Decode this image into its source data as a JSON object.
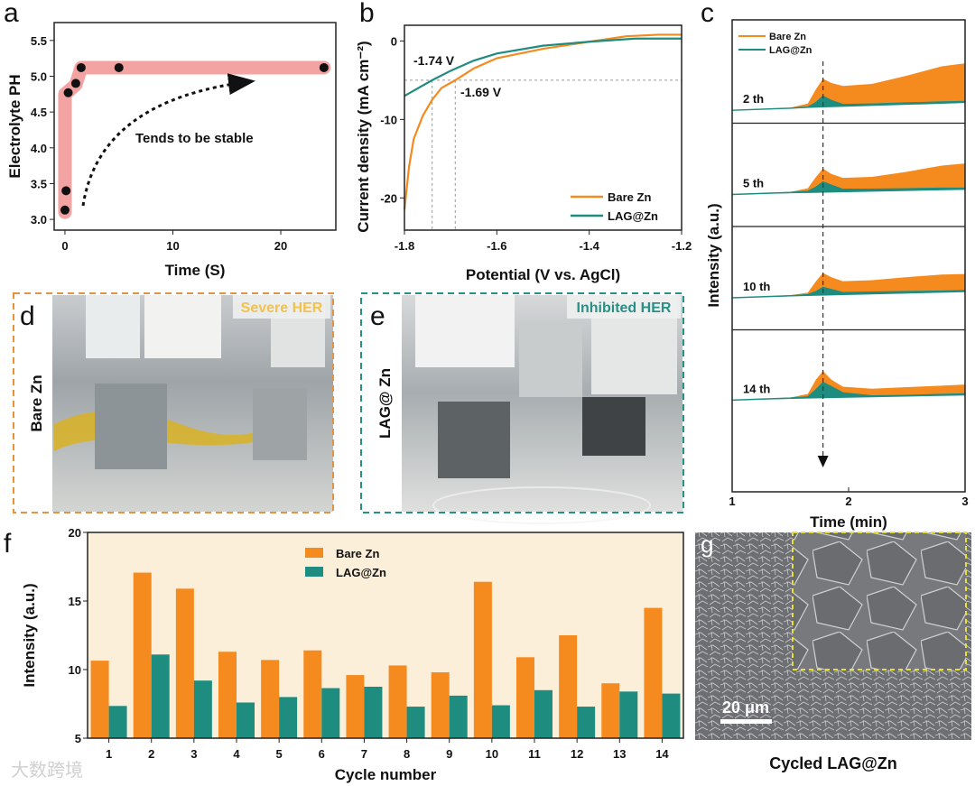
{
  "panels": {
    "a": "a",
    "b": "b",
    "c": "c",
    "d": "d",
    "e": "e",
    "f": "f",
    "g": "g",
    "d_side_label": "Bare Zn",
    "d_tag": "Severe HER",
    "e_side_label": "LAG@ Zn",
    "e_tag": "Inhibited HER",
    "g_scale_bar": "20 μm",
    "g_caption": "Cycled LAG@Zn"
  },
  "watermark": "大数跨境",
  "colors": {
    "bare": "#f58a1f",
    "lag": "#1f8c80",
    "band": "#f4a3a3",
    "f_bg": "#fcefd9",
    "d_border": "#e8923a",
    "e_border": "#2a8f85",
    "d_tag": "#f2c14e",
    "g_inset": "#e8e03a"
  },
  "chart_data": [
    {
      "id": "a",
      "type": "scatter",
      "xlabel": "Time (S)",
      "ylabel": "Electrolyte PH",
      "xlim": [
        -1,
        25.1
      ],
      "ylim": [
        2.85,
        5.75
      ],
      "xticks": [
        0,
        10,
        20
      ],
      "yticks": [
        "3.0",
        "3.5",
        "4.0",
        "4.5",
        "5.0",
        "5.5"
      ],
      "x": [
        0,
        0.1,
        0.3,
        1,
        1.5,
        5,
        24
      ],
      "y": [
        3.13,
        3.4,
        4.77,
        4.9,
        5.12,
        5.12,
        5.12
      ],
      "annotation": "Tends to be stable"
    },
    {
      "id": "b",
      "type": "line",
      "xlabel": "Potential (V vs. AgCl)",
      "ylabel": "Current density (mA cm⁻²)",
      "xlim": [
        -1.8,
        -1.2
      ],
      "ylim": [
        -24.1,
        2
      ],
      "xticks": [
        "-1.8",
        "-1.6",
        "-1.4",
        "-1.2"
      ],
      "yticks": [
        "0",
        "-10",
        "-20"
      ],
      "series": [
        {
          "name": "Bare Zn",
          "x": [
            -1.8,
            -1.79,
            -1.78,
            -1.76,
            -1.74,
            -1.72,
            -1.69,
            -1.65,
            -1.6,
            -1.5,
            -1.4,
            -1.32,
            -1.25,
            -1.2
          ],
          "y": [
            -21.5,
            -16,
            -12.5,
            -9.5,
            -7.5,
            -6,
            -5,
            -3.5,
            -2.2,
            -1,
            -0.1,
            0.6,
            0.8,
            0.8
          ]
        },
        {
          "name": "LAG@Zn",
          "x": [
            -1.8,
            -1.77,
            -1.74,
            -1.7,
            -1.65,
            -1.6,
            -1.5,
            -1.4,
            -1.3,
            -1.2
          ],
          "y": [
            -7,
            -6,
            -5,
            -3.8,
            -2.5,
            -1.6,
            -0.6,
            -0.1,
            0.3,
            0.3
          ]
        }
      ],
      "annotations": [
        "-1.74 V",
        "-1.69 V"
      ],
      "reference": {
        "y": -5,
        "x": [
          -1.74,
          -1.69
        ]
      }
    },
    {
      "id": "c",
      "type": "area",
      "xlabel": "Time (min)",
      "ylabel": "Intensity (a.u.)",
      "xlim": [
        1,
        3
      ],
      "ylim": [
        0,
        10
      ],
      "xticks": [
        "1",
        "2",
        "3"
      ],
      "marker_x": 1.78,
      "legend": [
        "Bare Zn",
        "LAG@Zn"
      ],
      "x": [
        1,
        1.5,
        1.65,
        1.72,
        1.78,
        1.85,
        1.95,
        2.2,
        2.5,
        2.8,
        3
      ],
      "cycles": [
        {
          "label": "2 th",
          "bare": [
            1.25,
            1.5,
            1.9,
            3.3,
            4.3,
            3.9,
            3.6,
            3.8,
            4.6,
            5.5,
            5.8
          ],
          "lag": [
            1.25,
            1.45,
            1.55,
            2.0,
            2.6,
            2.2,
            1.8,
            1.85,
            1.95,
            2.05,
            2.1
          ]
        },
        {
          "label": "5 th",
          "bare": [
            3.1,
            3.35,
            3.7,
            4.8,
            5.6,
            5.1,
            4.7,
            4.8,
            5.3,
            5.9,
            6.1
          ],
          "lag": [
            3.1,
            3.3,
            3.4,
            3.8,
            4.3,
            4.0,
            3.6,
            3.6,
            3.65,
            3.7,
            3.7
          ]
        },
        {
          "label": "10 th",
          "bare": [
            3.1,
            3.35,
            3.6,
            4.7,
            5.5,
            5.1,
            4.7,
            4.8,
            5.1,
            5.35,
            5.4
          ],
          "lag": [
            3.1,
            3.3,
            3.4,
            3.7,
            4.1,
            3.9,
            3.6,
            3.65,
            3.7,
            3.75,
            3.8
          ]
        },
        {
          "label": "14 th",
          "bare": [
            3.2,
            3.45,
            3.8,
            5.2,
            6.0,
            5.2,
            4.5,
            4.3,
            4.45,
            4.6,
            4.7
          ],
          "lag": [
            3.2,
            3.4,
            3.5,
            4.2,
            4.9,
            4.5,
            3.9,
            3.6,
            3.65,
            3.75,
            3.8
          ]
        }
      ]
    },
    {
      "id": "f",
      "type": "bar",
      "xlabel": "Cycle number",
      "ylabel": "Intensity (a.u.)",
      "ylim": [
        5,
        20
      ],
      "yticks": [
        "5",
        "10",
        "15",
        "20"
      ],
      "categories": [
        "1",
        "2",
        "3",
        "4",
        "5",
        "6",
        "7",
        "8",
        "9",
        "10",
        "11",
        "12",
        "13",
        "14"
      ],
      "series": [
        {
          "name": "Bare Zn",
          "values": [
            10.65,
            17.07,
            15.9,
            11.3,
            10.7,
            11.4,
            9.6,
            10.3,
            9.8,
            16.4,
            10.9,
            12.5,
            9.0,
            14.5
          ]
        },
        {
          "name": "LAG@Zn",
          "values": [
            7.35,
            11.1,
            9.2,
            7.6,
            8.0,
            8.65,
            8.75,
            7.3,
            8.1,
            7.4,
            8.5,
            7.3,
            8.4,
            8.25
          ]
        }
      ],
      "legend_position": "top-center"
    }
  ]
}
